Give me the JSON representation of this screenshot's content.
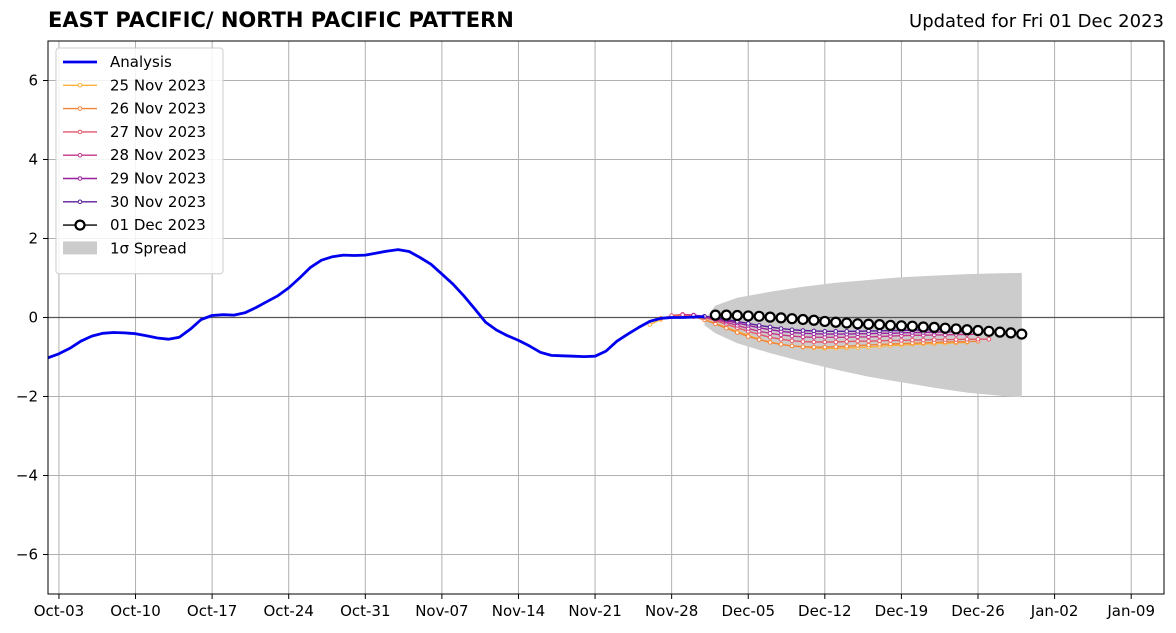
{
  "header": {
    "title": "EAST PACIFIC/ NORTH PACIFIC PATTERN",
    "subtitle": "Updated for Fri 01 Dec 2023"
  },
  "chart_data": {
    "type": "line",
    "title": "EAST PACIFIC/ NORTH PACIFIC PATTERN",
    "subtitle": "Updated for Fri 01 Dec 2023",
    "xlabel": "",
    "ylabel": "",
    "xlim": [
      "2023-10-02",
      "2024-01-12"
    ],
    "ylim": [
      -7,
      7
    ],
    "grid": true,
    "legend_position": "top-left",
    "x_tick_labels": [
      "Oct-03",
      "Oct-10",
      "Oct-17",
      "Oct-24",
      "Oct-31",
      "Nov-07",
      "Nov-14",
      "Nov-21",
      "Nov-28",
      "Dec-05",
      "Dec-12",
      "Dec-19",
      "Dec-26",
      "Jan-02",
      "Jan-09"
    ],
    "x_ticks": [
      "2023-10-03",
      "2023-10-10",
      "2023-10-17",
      "2023-10-24",
      "2023-10-31",
      "2023-11-07",
      "2023-11-14",
      "2023-11-21",
      "2023-11-28",
      "2023-12-05",
      "2023-12-12",
      "2023-12-19",
      "2023-12-26",
      "2024-01-02",
      "2024-01-09"
    ],
    "y_ticks": [
      -6,
      -4,
      -2,
      0,
      2,
      4,
      6
    ],
    "y_tick_labels": [
      "−6",
      "−4",
      "−2",
      "0",
      "2",
      "4",
      "6"
    ],
    "legend": {
      "analysis": "Analysis",
      "spread": "1σ Spread"
    },
    "series": [
      {
        "name": "Analysis",
        "color": "#0000ee",
        "style": "analysis",
        "x": [
          "2023-10-02",
          "2023-10-03",
          "2023-10-04",
          "2023-10-05",
          "2023-10-06",
          "2023-10-07",
          "2023-10-08",
          "2023-10-09",
          "2023-10-10",
          "2023-10-11",
          "2023-10-12",
          "2023-10-13",
          "2023-10-14",
          "2023-10-15",
          "2023-10-16",
          "2023-10-17",
          "2023-10-18",
          "2023-10-19",
          "2023-10-20",
          "2023-10-21",
          "2023-10-22",
          "2023-10-23",
          "2023-10-24",
          "2023-10-25",
          "2023-10-26",
          "2023-10-27",
          "2023-10-28",
          "2023-10-29",
          "2023-10-30",
          "2023-10-31",
          "2023-11-01",
          "2023-11-02",
          "2023-11-03",
          "2023-11-04",
          "2023-11-05",
          "2023-11-06",
          "2023-11-07",
          "2023-11-08",
          "2023-11-09",
          "2023-11-10",
          "2023-11-11",
          "2023-11-12",
          "2023-11-13",
          "2023-11-14",
          "2023-11-15",
          "2023-11-16",
          "2023-11-17",
          "2023-11-18",
          "2023-11-19",
          "2023-11-20",
          "2023-11-21",
          "2023-11-22",
          "2023-11-23",
          "2023-11-24",
          "2023-11-25",
          "2023-11-26",
          "2023-11-27",
          "2023-11-28",
          "2023-11-29",
          "2023-11-30",
          "2023-12-01"
        ],
        "values": [
          -1.02,
          -0.92,
          -0.78,
          -0.6,
          -0.47,
          -0.4,
          -0.38,
          -0.39,
          -0.41,
          -0.46,
          -0.52,
          -0.55,
          -0.5,
          -0.3,
          -0.05,
          0.05,
          0.07,
          0.06,
          0.12,
          0.25,
          0.4,
          0.55,
          0.75,
          1.0,
          1.27,
          1.45,
          1.54,
          1.58,
          1.57,
          1.58,
          1.63,
          1.68,
          1.72,
          1.67,
          1.52,
          1.35,
          1.1,
          0.85,
          0.55,
          0.22,
          -0.12,
          -0.32,
          -0.46,
          -0.58,
          -0.72,
          -0.88,
          -0.96,
          -0.97,
          -0.98,
          -0.99,
          -0.98,
          -0.85,
          -0.6,
          -0.42,
          -0.25,
          -0.1,
          -0.02,
          0.0,
          0.0,
          0.01,
          0.02
        ]
      },
      {
        "name": "25 Nov 2023",
        "color": "#fbb13d",
        "style": "forecast",
        "x": [
          "2023-11-26",
          "2023-11-27",
          "2023-11-28",
          "2023-11-29",
          "2023-11-30",
          "2023-12-01",
          "2023-12-02",
          "2023-12-03",
          "2023-12-04",
          "2023-12-05",
          "2023-12-06",
          "2023-12-07",
          "2023-12-08",
          "2023-12-09",
          "2023-12-10",
          "2023-12-11",
          "2023-12-12",
          "2023-12-13",
          "2023-12-14",
          "2023-12-15",
          "2023-12-16",
          "2023-12-17",
          "2023-12-18",
          "2023-12-19",
          "2023-12-20",
          "2023-12-21",
          "2023-12-22",
          "2023-12-23",
          "2023-12-24",
          "2023-12-25"
        ],
        "values": [
          -0.18,
          -0.05,
          0.02,
          0.05,
          0.03,
          -0.05,
          -0.15,
          -0.25,
          -0.35,
          -0.45,
          -0.55,
          -0.62,
          -0.68,
          -0.72,
          -0.75,
          -0.77,
          -0.78,
          -0.78,
          -0.77,
          -0.76,
          -0.75,
          -0.73,
          -0.71,
          -0.7,
          -0.68,
          -0.67,
          -0.66,
          -0.65,
          -0.64,
          -0.63
        ]
      },
      {
        "name": "26 Nov 2023",
        "color": "#f2843a",
        "style": "forecast",
        "x": [
          "2023-11-27",
          "2023-11-28",
          "2023-11-29",
          "2023-11-30",
          "2023-12-01",
          "2023-12-02",
          "2023-12-03",
          "2023-12-04",
          "2023-12-05",
          "2023-12-06",
          "2023-12-07",
          "2023-12-08",
          "2023-12-09",
          "2023-12-10",
          "2023-12-11",
          "2023-12-12",
          "2023-12-13",
          "2023-12-14",
          "2023-12-15",
          "2023-12-16",
          "2023-12-17",
          "2023-12-18",
          "2023-12-19",
          "2023-12-20",
          "2023-12-21",
          "2023-12-22",
          "2023-12-23",
          "2023-12-24",
          "2023-12-25",
          "2023-12-26"
        ],
        "values": [
          -0.02,
          0.04,
          0.06,
          0.02,
          -0.06,
          -0.16,
          -0.27,
          -0.38,
          -0.48,
          -0.56,
          -0.63,
          -0.68,
          -0.72,
          -0.74,
          -0.75,
          -0.75,
          -0.74,
          -0.73,
          -0.71,
          -0.7,
          -0.68,
          -0.67,
          -0.66,
          -0.65,
          -0.64,
          -0.63,
          -0.62,
          -0.62,
          -0.61,
          -0.6
        ]
      },
      {
        "name": "27 Nov 2023",
        "color": "#e3566b",
        "style": "forecast",
        "x": [
          "2023-11-28",
          "2023-11-29",
          "2023-11-30",
          "2023-12-01",
          "2023-12-02",
          "2023-12-03",
          "2023-12-04",
          "2023-12-05",
          "2023-12-06",
          "2023-12-07",
          "2023-12-08",
          "2023-12-09",
          "2023-12-10",
          "2023-12-11",
          "2023-12-12",
          "2023-12-13",
          "2023-12-14",
          "2023-12-15",
          "2023-12-16",
          "2023-12-17",
          "2023-12-18",
          "2023-12-19",
          "2023-12-20",
          "2023-12-21",
          "2023-12-22",
          "2023-12-23",
          "2023-12-24",
          "2023-12-25",
          "2023-12-26",
          "2023-12-27"
        ],
        "values": [
          0.05,
          0.08,
          0.06,
          0.0,
          -0.08,
          -0.17,
          -0.26,
          -0.35,
          -0.43,
          -0.5,
          -0.55,
          -0.59,
          -0.61,
          -0.62,
          -0.62,
          -0.62,
          -0.61,
          -0.6,
          -0.6,
          -0.59,
          -0.58,
          -0.58,
          -0.57,
          -0.57,
          -0.56,
          -0.56,
          -0.56,
          -0.55,
          -0.55,
          -0.55
        ]
      },
      {
        "name": "28 Nov 2023",
        "color": "#c2368c",
        "style": "forecast",
        "x": [
          "2023-11-29",
          "2023-11-30",
          "2023-12-01",
          "2023-12-02",
          "2023-12-03",
          "2023-12-04",
          "2023-12-05",
          "2023-12-06",
          "2023-12-07",
          "2023-12-08",
          "2023-12-09",
          "2023-12-10",
          "2023-12-11",
          "2023-12-12",
          "2023-12-13",
          "2023-12-14",
          "2023-12-15",
          "2023-12-16",
          "2023-12-17",
          "2023-12-18",
          "2023-12-19",
          "2023-12-20",
          "2023-12-21",
          "2023-12-22",
          "2023-12-23",
          "2023-12-24",
          "2023-12-25",
          "2023-12-26"
        ],
        "values": [
          0.07,
          0.06,
          0.02,
          -0.05,
          -0.12,
          -0.2,
          -0.28,
          -0.35,
          -0.4,
          -0.44,
          -0.47,
          -0.49,
          -0.5,
          -0.5,
          -0.5,
          -0.5,
          -0.49,
          -0.49,
          -0.48,
          -0.47,
          -0.46,
          -0.45,
          -0.45,
          -0.44,
          -0.44,
          -0.43,
          -0.43,
          -0.42
        ]
      },
      {
        "name": "29 Nov 2023",
        "color": "#9a1fa0",
        "style": "forecast",
        "x": [
          "2023-11-30",
          "2023-12-01",
          "2023-12-02",
          "2023-12-03",
          "2023-12-04",
          "2023-12-05",
          "2023-12-06",
          "2023-12-07",
          "2023-12-08",
          "2023-12-09",
          "2023-12-10",
          "2023-12-11",
          "2023-12-12",
          "2023-12-13",
          "2023-12-14",
          "2023-12-15",
          "2023-12-16",
          "2023-12-17",
          "2023-12-18",
          "2023-12-19",
          "2023-12-20",
          "2023-12-21",
          "2023-12-22",
          "2023-12-23",
          "2023-12-24",
          "2023-12-25"
        ],
        "values": [
          0.06,
          0.03,
          -0.02,
          -0.08,
          -0.14,
          -0.2,
          -0.26,
          -0.31,
          -0.35,
          -0.38,
          -0.4,
          -0.41,
          -0.42,
          -0.42,
          -0.42,
          -0.41,
          -0.41,
          -0.4,
          -0.4,
          -0.39,
          -0.38,
          -0.38,
          -0.37,
          -0.37,
          -0.36,
          -0.36
        ]
      },
      {
        "name": "30 Nov 2023",
        "color": "#5c1d99",
        "style": "forecast",
        "x": [
          "2023-12-01",
          "2023-12-02",
          "2023-12-03",
          "2023-12-04",
          "2023-12-05",
          "2023-12-06",
          "2023-12-07",
          "2023-12-08",
          "2023-12-09",
          "2023-12-10",
          "2023-12-11",
          "2023-12-12",
          "2023-12-13",
          "2023-12-14",
          "2023-12-15",
          "2023-12-16",
          "2023-12-17",
          "2023-12-18",
          "2023-12-19",
          "2023-12-20",
          "2023-12-21",
          "2023-12-22",
          "2023-12-23",
          "2023-12-24",
          "2023-12-25",
          "2023-12-26"
        ],
        "values": [
          0.03,
          0.0,
          -0.05,
          -0.1,
          -0.15,
          -0.2,
          -0.24,
          -0.28,
          -0.31,
          -0.33,
          -0.34,
          -0.35,
          -0.35,
          -0.35,
          -0.35,
          -0.34,
          -0.34,
          -0.33,
          -0.33,
          -0.32,
          -0.32,
          -0.31,
          -0.31,
          -0.3,
          -0.3,
          -0.3
        ]
      },
      {
        "name": "01 Dec 2023",
        "color": "#000000",
        "style": "current",
        "x": [
          "2023-12-02",
          "2023-12-03",
          "2023-12-04",
          "2023-12-05",
          "2023-12-06",
          "2023-12-07",
          "2023-12-08",
          "2023-12-09",
          "2023-12-10",
          "2023-12-11",
          "2023-12-12",
          "2023-12-13",
          "2023-12-14",
          "2023-12-15",
          "2023-12-16",
          "2023-12-17",
          "2023-12-18",
          "2023-12-19",
          "2023-12-20",
          "2023-12-21",
          "2023-12-22",
          "2023-12-23",
          "2023-12-24",
          "2023-12-25",
          "2023-12-26",
          "2023-12-27",
          "2023-12-28",
          "2023-12-29",
          "2023-12-30"
        ],
        "values": [
          0.06,
          0.06,
          0.05,
          0.04,
          0.03,
          0.01,
          -0.01,
          -0.03,
          -0.05,
          -0.07,
          -0.1,
          -0.12,
          -0.14,
          -0.16,
          -0.17,
          -0.18,
          -0.2,
          -0.21,
          -0.22,
          -0.24,
          -0.25,
          -0.27,
          -0.29,
          -0.31,
          -0.33,
          -0.35,
          -0.37,
          -0.39,
          -0.42
        ]
      }
    ],
    "spread": {
      "name": "1σ Spread",
      "color": "#cccccc",
      "x": [
        "2023-12-01",
        "2023-12-02",
        "2023-12-04",
        "2023-12-07",
        "2023-12-10",
        "2023-12-13",
        "2023-12-16",
        "2023-12-19",
        "2023-12-22",
        "2023-12-25",
        "2023-12-28",
        "2023-12-30"
      ],
      "upper": [
        -0.05,
        0.3,
        0.5,
        0.65,
        0.78,
        0.88,
        0.95,
        1.02,
        1.06,
        1.1,
        1.12,
        1.13
      ],
      "lower": [
        -0.2,
        -0.4,
        -0.65,
        -0.9,
        -1.12,
        -1.32,
        -1.5,
        -1.64,
        -1.78,
        -1.9,
        -1.98,
        -2.02
      ]
    }
  }
}
